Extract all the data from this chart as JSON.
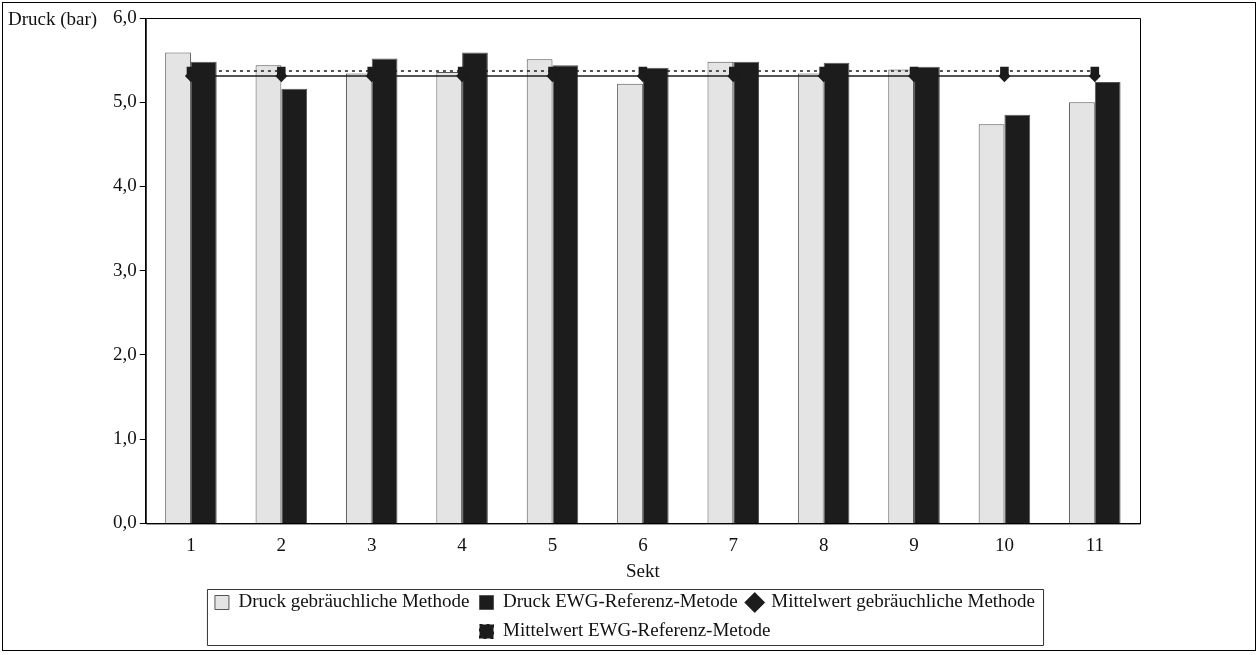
{
  "chart_data": {
    "type": "bar",
    "xlabel": "Sekt",
    "ylabel": "Druck (bar)",
    "categories": [
      "1",
      "2",
      "3",
      "4",
      "5",
      "6",
      "7",
      "8",
      "9",
      "10",
      "11"
    ],
    "ylim": [
      0,
      6
    ],
    "yticks": [
      {
        "value": 0,
        "label": "0,0"
      },
      {
        "value": 1,
        "label": "1,0"
      },
      {
        "value": 2,
        "label": "2,0"
      },
      {
        "value": 3,
        "label": "3,0"
      },
      {
        "value": 4,
        "label": "4,0"
      },
      {
        "value": 5,
        "label": "5,0"
      },
      {
        "value": 6,
        "label": "6,0"
      }
    ],
    "grid": false,
    "legend": "bottom",
    "series": [
      {
        "name": "Druck gebräuchliche Methode",
        "color": "#e4e4e4",
        "values": [
          5.59,
          5.44,
          5.34,
          5.36,
          5.51,
          5.22,
          5.48,
          5.34,
          5.39,
          4.74,
          5.0
        ]
      },
      {
        "name": "Druck EWG-Referenz-Metode",
        "color": "#1c1c1c",
        "values": [
          5.48,
          5.16,
          5.52,
          5.59,
          5.44,
          5.41,
          5.48,
          5.47,
          5.42,
          4.85,
          5.24
        ]
      },
      {
        "name": "Mittelwert gebräuchliche Methode",
        "type": "line",
        "color": "#1c1c1c",
        "marker": "diamond",
        "line_style": "solid",
        "values": [
          5.31,
          5.31,
          5.31,
          5.31,
          5.31,
          5.31,
          5.31,
          5.31,
          5.31,
          5.31,
          5.31
        ]
      },
      {
        "name": "Mittelwert EWG-Referenz-Metode",
        "type": "line",
        "color": "#1c1c1c",
        "marker": "square",
        "line_style": "dotted",
        "values": [
          5.37,
          5.37,
          5.37,
          5.37,
          5.37,
          5.37,
          5.37,
          5.37,
          5.37,
          5.37,
          5.37
        ]
      }
    ]
  }
}
